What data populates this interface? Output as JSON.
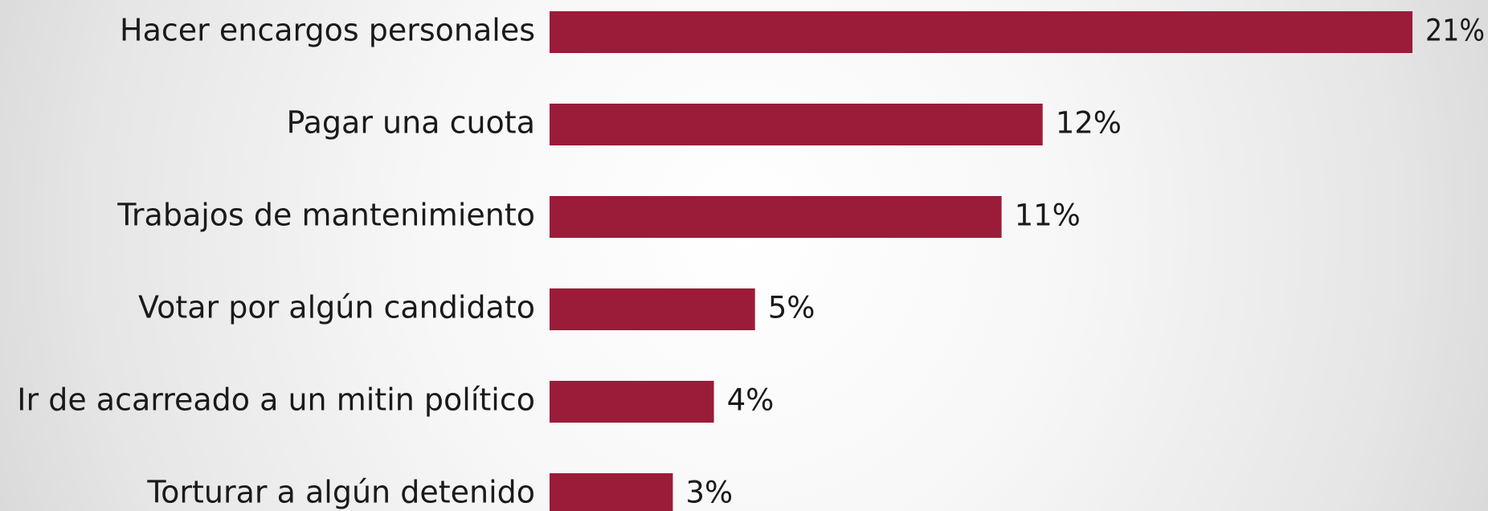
{
  "chart_data": {
    "type": "bar",
    "orientation": "horizontal",
    "categories": [
      "Hacer encargos personales",
      "Pagar una cuota",
      "Trabajos de mantenimiento",
      "Votar por algún candidato",
      "Ir de acarreado a un mitin político",
      "Torturar a algún detenido"
    ],
    "values": [
      21,
      12,
      11,
      5,
      4,
      3
    ],
    "value_labels": [
      "21%",
      "12%",
      "11%",
      "5%",
      "4%",
      "3%"
    ],
    "unit": "%",
    "xlim": [
      0,
      21
    ],
    "grid": false,
    "legend": "none",
    "bar_color": "#9b1c38"
  }
}
